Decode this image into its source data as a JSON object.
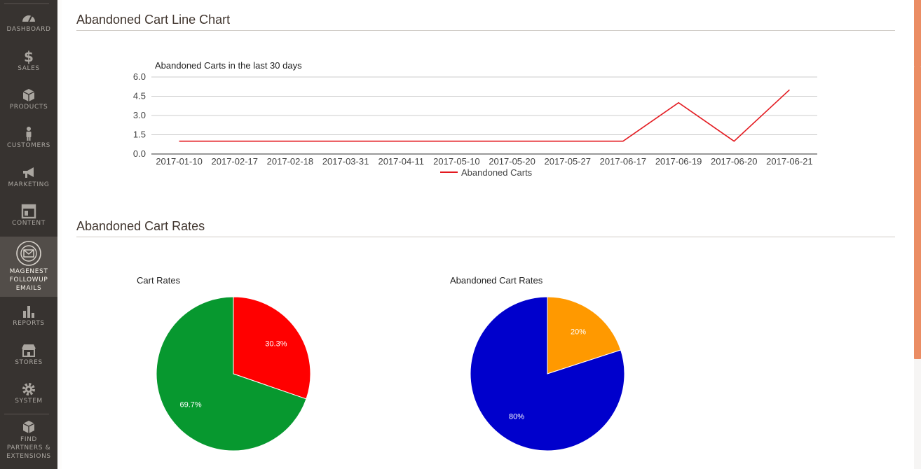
{
  "sidebar": {
    "items": [
      {
        "label": "DASHBOARD",
        "icon": "dashboard-icon"
      },
      {
        "label": "SALES",
        "icon": "dollar-icon"
      },
      {
        "label": "PRODUCTS",
        "icon": "box-icon"
      },
      {
        "label": "CUSTOMERS",
        "icon": "person-icon"
      },
      {
        "label": "MARKETING",
        "icon": "megaphone-icon"
      },
      {
        "label": "CONTENT",
        "icon": "layout-icon"
      },
      {
        "label": "MAGENEST",
        "label2": "FOLLOWUP",
        "label3": "EMAILS",
        "icon": "email-badge-icon",
        "active": true
      },
      {
        "label": "REPORTS",
        "icon": "bar-chart-icon"
      },
      {
        "label": "STORES",
        "icon": "store-icon"
      },
      {
        "label": "SYSTEM",
        "icon": "gear-icon"
      },
      {
        "label": "FIND",
        "label2": "PARTNERS &",
        "label3": "EXTENSIONS",
        "icon": "extensions-icon"
      }
    ]
  },
  "main": {
    "section1_title": "Abandoned Cart Line Chart",
    "section2_title": "Abandoned Cart Rates"
  },
  "colors": {
    "sidebar_bg": "#373330",
    "line": "#e3191f",
    "pie_green": "#07982f",
    "pie_red": "#ff0000",
    "pie_blue": "#0000cc",
    "pie_orange": "#ff9900"
  },
  "chart_data": [
    {
      "type": "line",
      "title": "Abandoned Carts in the last 30 days",
      "categories": [
        "2017-01-10",
        "2017-02-17",
        "2017-02-18",
        "2017-03-31",
        "2017-04-11",
        "2017-05-10",
        "2017-05-20",
        "2017-05-27",
        "2017-06-17",
        "2017-06-19",
        "2017-06-20",
        "2017-06-21"
      ],
      "series": [
        {
          "name": "Abandoned Carts",
          "values": [
            1,
            1,
            1,
            1,
            1,
            1,
            1,
            1,
            1,
            4,
            1,
            5
          ]
        }
      ],
      "yticks": [
        "0.0",
        "1.5",
        "3.0",
        "4.5",
        "6.0"
      ],
      "ylim": [
        0,
        6
      ],
      "grid": true,
      "legend": "bottom"
    },
    {
      "type": "pie",
      "title": "Cart Rates",
      "slices": [
        {
          "value": 30.3,
          "label": "30.3%"
        },
        {
          "value": 69.7,
          "label": "69.7%"
        }
      ]
    },
    {
      "type": "pie",
      "title": "Abandoned Cart Rates",
      "slices": [
        {
          "value": 20,
          "label": "20%"
        },
        {
          "value": 80,
          "label": "80%"
        }
      ]
    }
  ]
}
